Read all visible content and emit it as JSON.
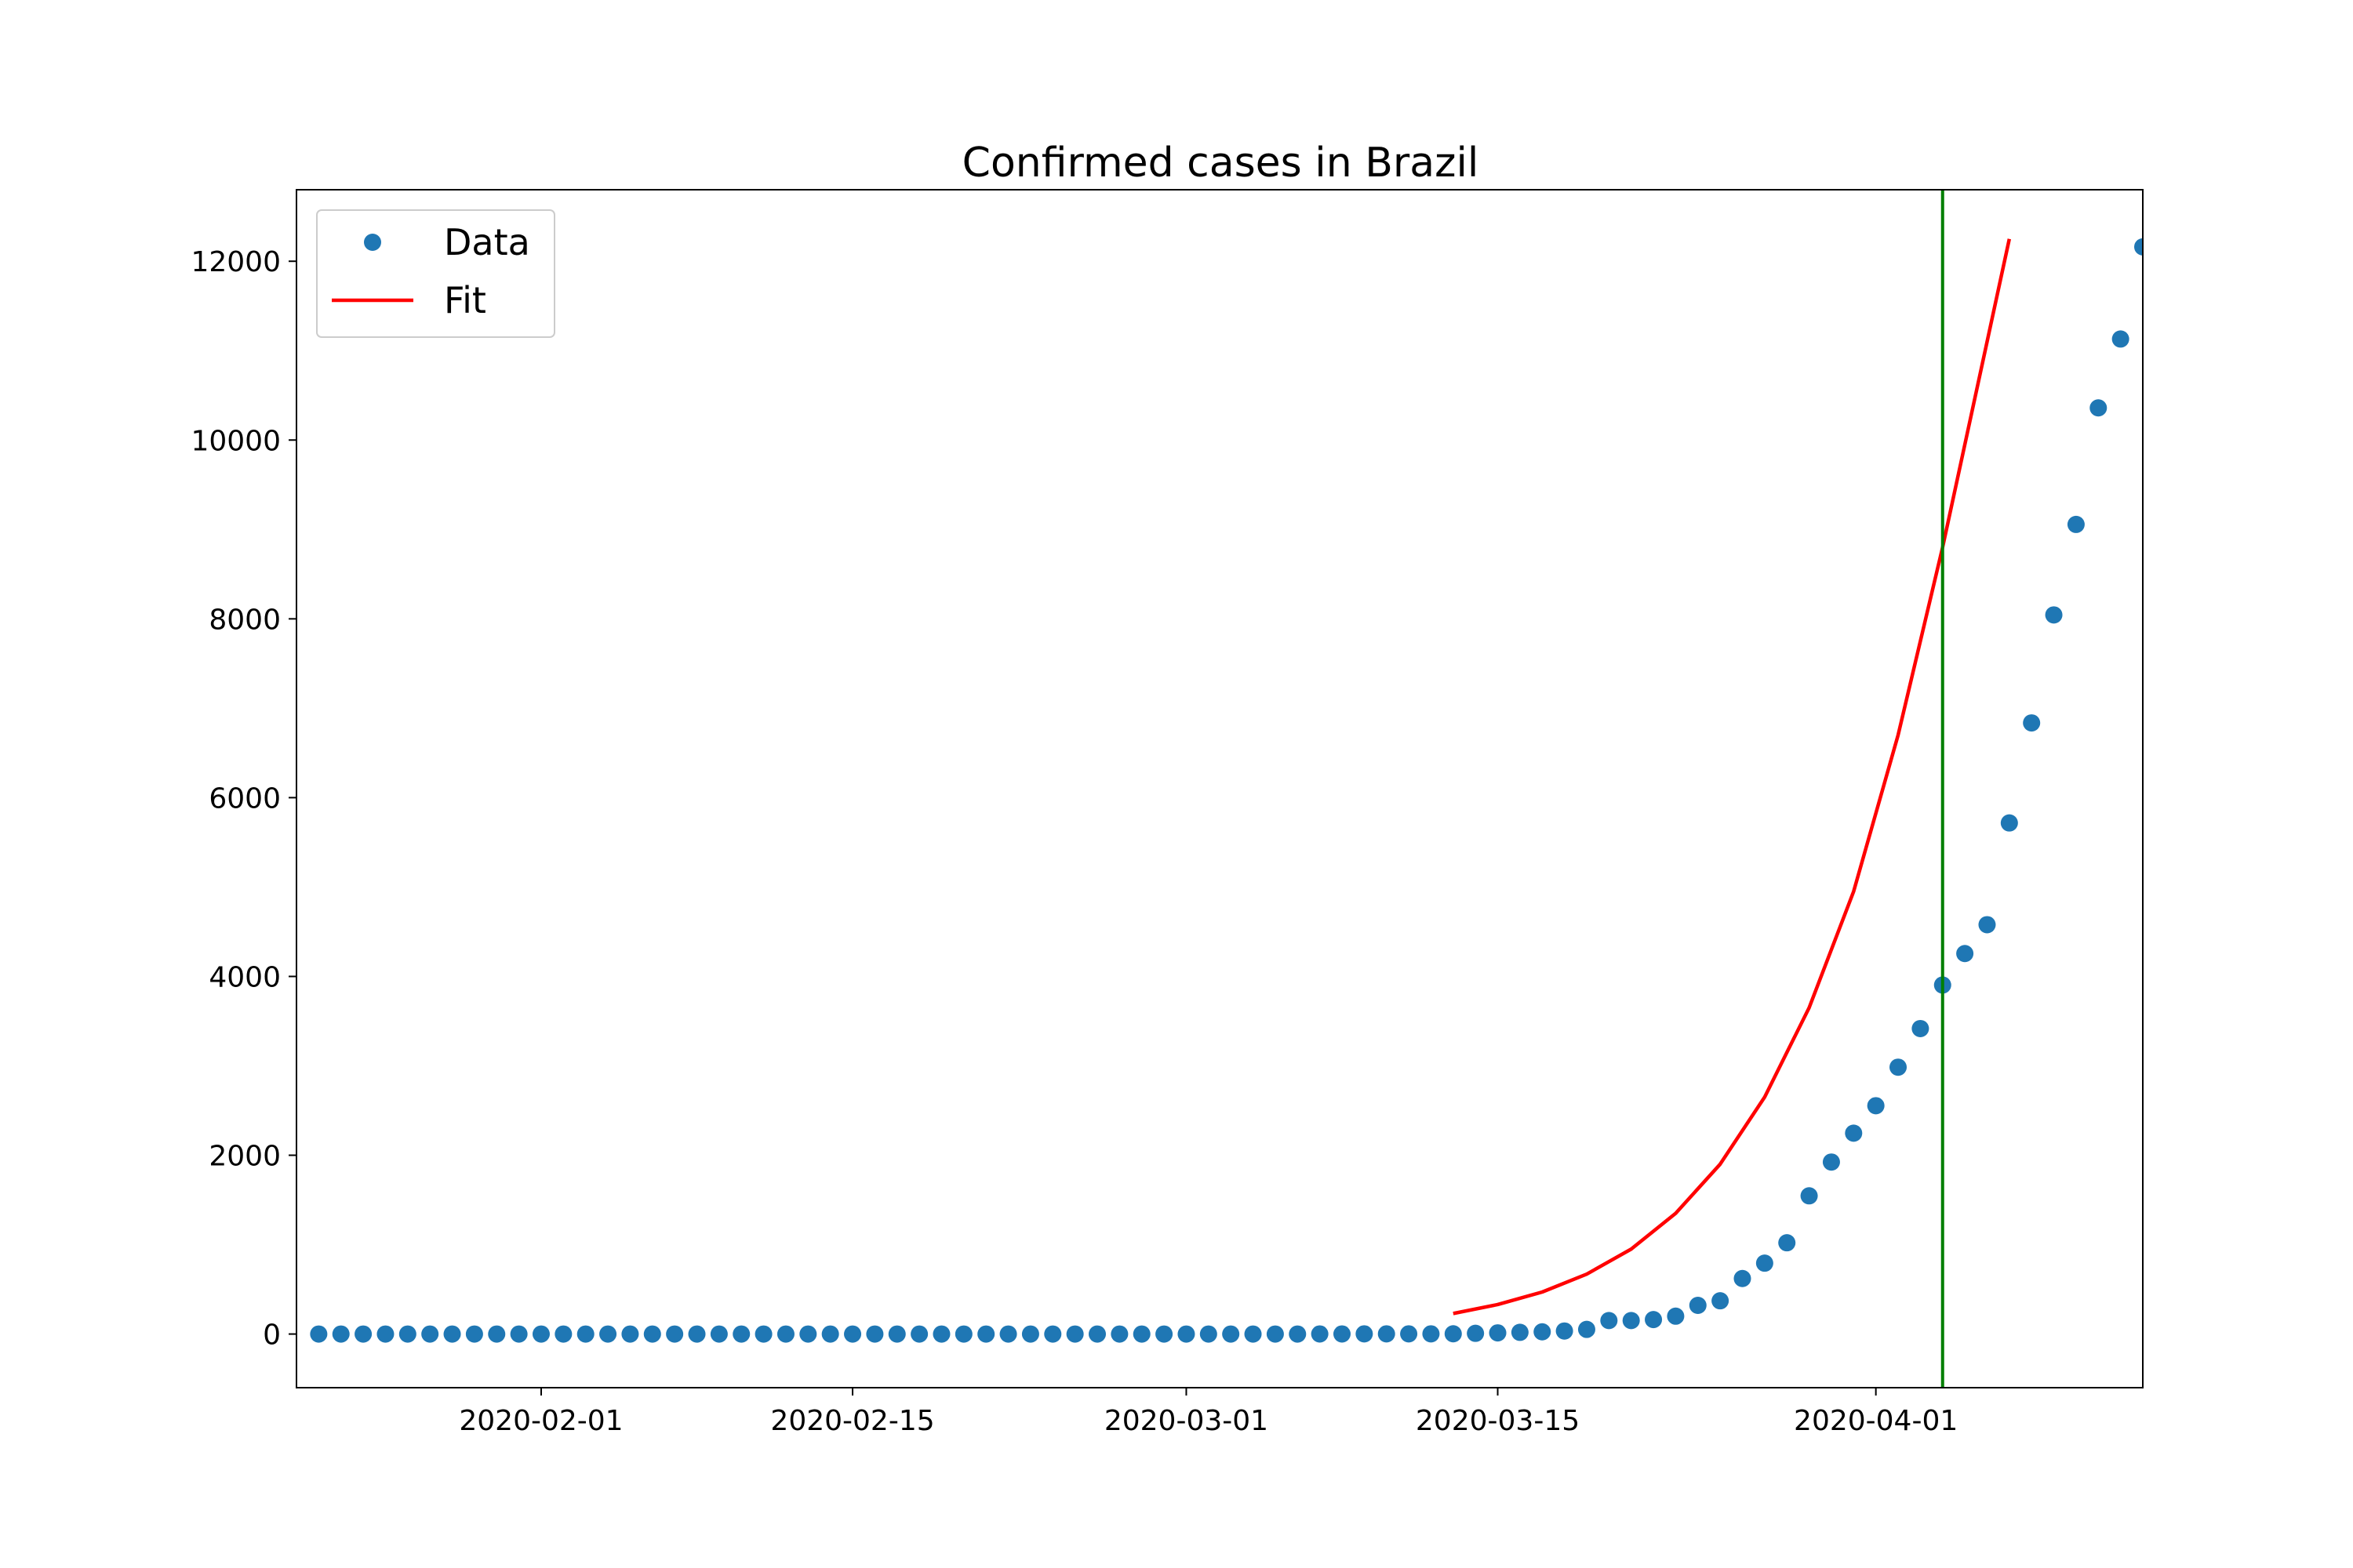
{
  "chart_data": {
    "type": "scatter",
    "title": "Confirmed cases in Brazil",
    "xlabel": "",
    "ylabel": "",
    "x_axis": {
      "type": "date",
      "range": [
        "2020-01-21",
        "2020-04-13"
      ],
      "ticks": [
        "2020-02-01",
        "2020-02-15",
        "2020-03-01",
        "2020-03-15",
        "2020-04-01"
      ]
    },
    "y_axis": {
      "range": [
        -600,
        12800
      ],
      "ticks": [
        0,
        2000,
        4000,
        6000,
        8000,
        10000,
        12000
      ]
    },
    "grid": false,
    "legend_position": "top-left",
    "colors": {
      "data": "#1f77b4",
      "fit": "#ff0000",
      "marker_line": "#007f00"
    },
    "series": [
      {
        "name": "Data",
        "kind": "points",
        "start_date": "2020-01-22",
        "values": [
          0,
          0,
          0,
          0,
          0,
          0,
          0,
          0,
          0,
          0,
          0,
          0,
          0,
          0,
          0,
          0,
          0,
          0,
          0,
          0,
          0,
          0,
          0,
          0,
          0,
          0,
          0,
          0,
          0,
          0,
          0,
          0,
          0,
          0,
          0,
          0,
          0,
          0,
          0,
          0,
          0,
          0,
          0,
          0,
          0,
          1,
          1,
          2,
          2,
          2,
          2,
          3,
          8,
          13,
          19,
          25,
          34,
          52,
          151,
          151,
          162,
          200,
          321,
          372,
          621,
          793,
          1021,
          1546,
          1924,
          2247,
          2554,
          2985,
          3417,
          3904,
          4256,
          4579,
          5717,
          6836,
          8044,
          9056,
          10360,
          11130,
          12161
        ]
      },
      {
        "name": "Fit",
        "kind": "line",
        "points": [
          {
            "date": "2020-03-13",
            "y": 230
          },
          {
            "date": "2020-03-15",
            "y": 330
          },
          {
            "date": "2020-03-17",
            "y": 470
          },
          {
            "date": "2020-03-19",
            "y": 670
          },
          {
            "date": "2020-03-21",
            "y": 950
          },
          {
            "date": "2020-03-23",
            "y": 1350
          },
          {
            "date": "2020-03-25",
            "y": 1900
          },
          {
            "date": "2020-03-27",
            "y": 2650
          },
          {
            "date": "2020-03-29",
            "y": 3650
          },
          {
            "date": "2020-03-31",
            "y": 4950
          },
          {
            "date": "2020-04-02",
            "y": 6700
          },
          {
            "date": "2020-04-04",
            "y": 8800
          },
          {
            "date": "2020-04-06",
            "y": 11100
          },
          {
            "date": "2020-04-07",
            "y": 12250
          }
        ]
      }
    ],
    "annotations": [
      {
        "type": "vertical-line",
        "date": "2020-04-04",
        "color": "#007f00"
      }
    ]
  }
}
